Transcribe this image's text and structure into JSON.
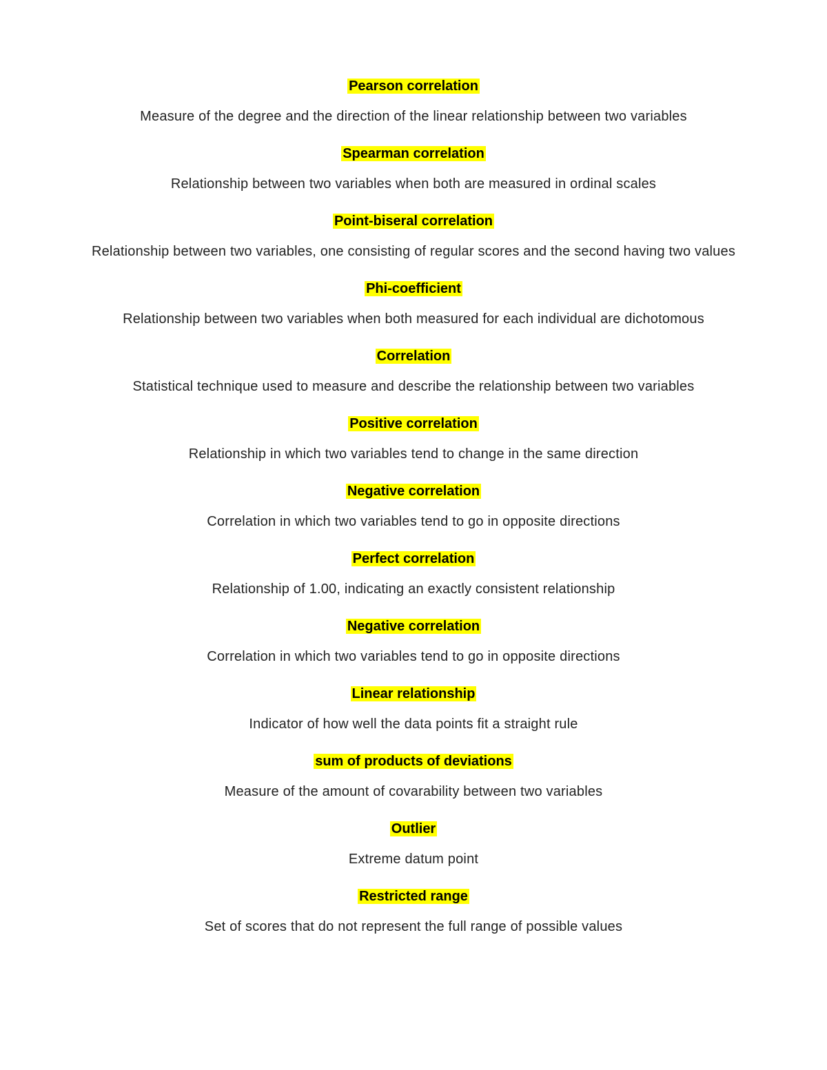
{
  "highlight_color": "#ffff00",
  "text_color": "#222222",
  "background_color": "#ffffff",
  "font_family": "Verdana, Geneva, sans-serif",
  "term_fontsize": 20,
  "definition_fontsize": 20,
  "entries": [
    {
      "term": "Pearson correlation",
      "definition": "Measure of the degree and the direction of the linear relationship between two variables"
    },
    {
      "term": "Spearman correlation",
      "definition": "Relationship between two variables when both are measured in ordinal scales"
    },
    {
      "term": "Point-biseral correlation",
      "definition": "Relationship between two variables, one consisting of regular scores and the second having two values"
    },
    {
      "term": "Phi-coefficient",
      "definition": "Relationship between two variables when both measured for each individual are dichotomous"
    },
    {
      "term": "Correlation",
      "definition": "Statistical technique used to measure and describe the relationship between two variables"
    },
    {
      "term": "Positive correlation",
      "definition": "Relationship in which two variables tend to change in the same direction"
    },
    {
      "term": "Negative correlation",
      "definition": "Correlation in which two variables tend to go in opposite directions"
    },
    {
      "term": "Perfect correlation",
      "definition": "Relationship of 1.00, indicating an exactly consistent relationship"
    },
    {
      "term": "Negative correlation",
      "definition": "Correlation in which two variables tend to go in opposite directions"
    },
    {
      "term": "Linear relationship",
      "definition": "Indicator of how well the data points fit a straight rule"
    },
    {
      "term": "sum of products of deviations",
      "definition": "Measure of the amount of covarability between two variables"
    },
    {
      "term": "Outlier",
      "definition": "Extreme datum point"
    },
    {
      "term": "Restricted range",
      "definition": "Set of scores that do not represent the full range of possible values"
    }
  ]
}
